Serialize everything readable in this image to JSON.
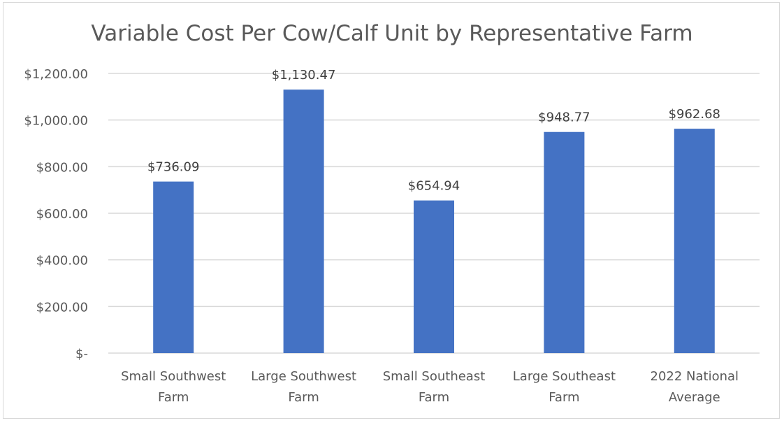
{
  "chart_data": {
    "type": "bar",
    "title": "Variable Cost Per Cow/Calf Unit by Representative Farm",
    "categories": [
      [
        "Small Southwest",
        "Farm"
      ],
      [
        "Large Southwest",
        "Farm"
      ],
      [
        "Small Southeast",
        "Farm"
      ],
      [
        "Large Southeast",
        "Farm"
      ],
      [
        "2022 National",
        "Average"
      ]
    ],
    "values": [
      736.09,
      1130.47,
      654.94,
      948.77,
      962.68
    ],
    "data_labels": [
      "$736.09",
      "$1,130.47",
      "$654.94",
      "$948.77",
      "$962.68"
    ],
    "ylim": [
      0,
      1200
    ],
    "yticks": [
      0,
      200,
      400,
      600,
      800,
      1000,
      1200
    ],
    "ytick_labels": [
      "$-",
      "$200.00",
      "$400.00",
      "$600.00",
      "$800.00",
      "$1,000.00",
      "$1,200.00"
    ],
    "xlabel": "",
    "ylabel": "",
    "grid": true,
    "legend": "none",
    "colors": {
      "bar": "#4472C4",
      "grid": "#d9d9d9",
      "text": "#595959"
    }
  }
}
